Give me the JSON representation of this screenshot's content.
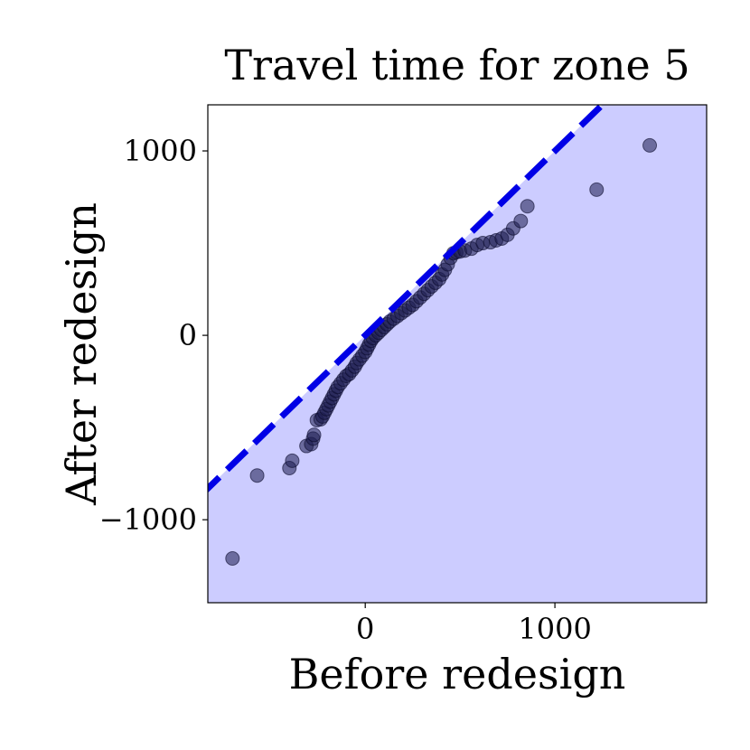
{
  "chart_data": {
    "type": "scatter",
    "title": "Travel time for zone 5",
    "xlabel": "Before redesign",
    "ylabel": "After redesign",
    "xlim": [
      -830,
      1800
    ],
    "ylim": [
      -1450,
      1250
    ],
    "xticks": [
      0,
      1000
    ],
    "xtick_labels": [
      "0",
      "1000"
    ],
    "yticks": [
      -1000,
      0,
      1000
    ],
    "ytick_labels": [
      "−1000",
      "0",
      "1000"
    ],
    "grid": false,
    "legend": "none",
    "reference_line": {
      "slope": 1,
      "intercept": 0,
      "style": "dashed",
      "color": "#0000e6"
    },
    "shaded_region": "below y = x",
    "colors": {
      "shade": "#ccccff",
      "point": "#1c1c4e",
      "point_edge": "#0a0a2a"
    },
    "points": [
      [
        -700,
        -1210
      ],
      [
        -570,
        -760
      ],
      [
        -400,
        -720
      ],
      [
        -385,
        -680
      ],
      [
        -310,
        -600
      ],
      [
        -285,
        -590
      ],
      [
        -275,
        -560
      ],
      [
        -270,
        -540
      ],
      [
        -255,
        -460
      ],
      [
        -235,
        -455
      ],
      [
        -225,
        -440
      ],
      [
        -215,
        -420
      ],
      [
        -205,
        -400
      ],
      [
        -195,
        -380
      ],
      [
        -185,
        -360
      ],
      [
        -175,
        -340
      ],
      [
        -165,
        -320
      ],
      [
        -155,
        -300
      ],
      [
        -145,
        -280
      ],
      [
        -130,
        -260
      ],
      [
        -115,
        -240
      ],
      [
        -100,
        -220
      ],
      [
        -85,
        -210
      ],
      [
        -70,
        -190
      ],
      [
        -55,
        -170
      ],
      [
        -45,
        -150
      ],
      [
        -30,
        -130
      ],
      [
        -15,
        -110
      ],
      [
        0,
        -90
      ],
      [
        10,
        -70
      ],
      [
        20,
        -50
      ],
      [
        30,
        -30
      ],
      [
        40,
        -15
      ],
      [
        55,
        0
      ],
      [
        70,
        15
      ],
      [
        85,
        30
      ],
      [
        100,
        45
      ],
      [
        115,
        60
      ],
      [
        130,
        75
      ],
      [
        150,
        90
      ],
      [
        170,
        105
      ],
      [
        190,
        120
      ],
      [
        210,
        135
      ],
      [
        230,
        150
      ],
      [
        250,
        165
      ],
      [
        270,
        185
      ],
      [
        290,
        205
      ],
      [
        310,
        225
      ],
      [
        330,
        245
      ],
      [
        350,
        265
      ],
      [
        370,
        285
      ],
      [
        390,
        305
      ],
      [
        405,
        330
      ],
      [
        420,
        355
      ],
      [
        435,
        385
      ],
      [
        450,
        420
      ],
      [
        465,
        445
      ],
      [
        480,
        450
      ],
      [
        500,
        455
      ],
      [
        525,
        460
      ],
      [
        560,
        470
      ],
      [
        590,
        490
      ],
      [
        620,
        500
      ],
      [
        660,
        505
      ],
      [
        690,
        515
      ],
      [
        720,
        525
      ],
      [
        750,
        545
      ],
      [
        780,
        580
      ],
      [
        820,
        620
      ],
      [
        855,
        700
      ],
      [
        1220,
        790
      ],
      [
        1500,
        1030
      ]
    ]
  }
}
